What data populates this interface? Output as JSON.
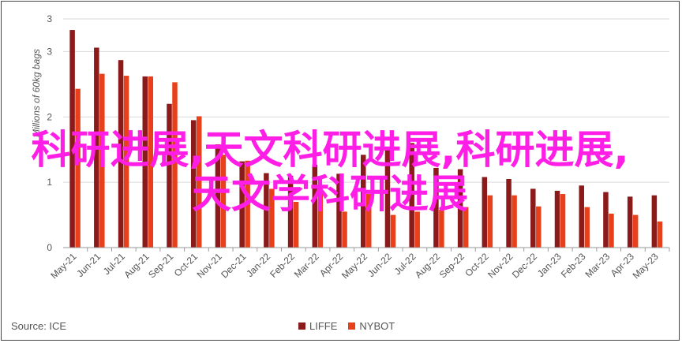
{
  "chart_data": {
    "type": "bar",
    "ylabel": "Millions of 60kg bags",
    "ylim": [
      0,
      3.5
    ],
    "yticks": [
      "0",
      "1",
      "2",
      "3",
      "3"
    ],
    "grid": true,
    "legend_position": "bottom",
    "categories": [
      "May-21",
      "Jun-21",
      "Jul-21",
      "Aug-21",
      "Sep-21",
      "Oct-21",
      "Nov-21",
      "Dec-21",
      "Jan-22",
      "Feb-22",
      "Mar-22",
      "Apr-22",
      "May-22",
      "Jun-22",
      "Jul-22",
      "Aug-22",
      "Sep-22",
      "Oct-22",
      "Nov-22",
      "Dec-22",
      "Jan-23",
      "Feb-23",
      "Mar-23",
      "Apr-23",
      "May-23"
    ],
    "series": [
      {
        "name": "LIFFE",
        "color": "#8b1a1a",
        "values": [
          3.33,
          3.06,
          2.87,
          2.62,
          2.2,
          1.95,
          1.58,
          1.32,
          1.14,
          1.1,
          1.27,
          1.13,
          1.42,
          1.52,
          1.6,
          1.22,
          1.2,
          1.08,
          1.05,
          0.9,
          0.87,
          0.95,
          0.85,
          0.78,
          0.8
        ]
      },
      {
        "name": "NYBOT",
        "color": "#e8401a",
        "values": [
          2.43,
          2.66,
          2.63,
          2.62,
          2.53,
          2.01,
          1.42,
          1.33,
          0.9,
          0.7,
          0.9,
          0.55,
          0.82,
          0.5,
          0.55,
          0.58,
          0.62,
          0.8,
          0.8,
          0.63,
          0.82,
          0.62,
          0.52,
          0.5,
          0.4
        ]
      }
    ]
  },
  "source": "Source: ICE",
  "watermark": "科研进展,天文科研进展,科研进展,天文学科研进展"
}
